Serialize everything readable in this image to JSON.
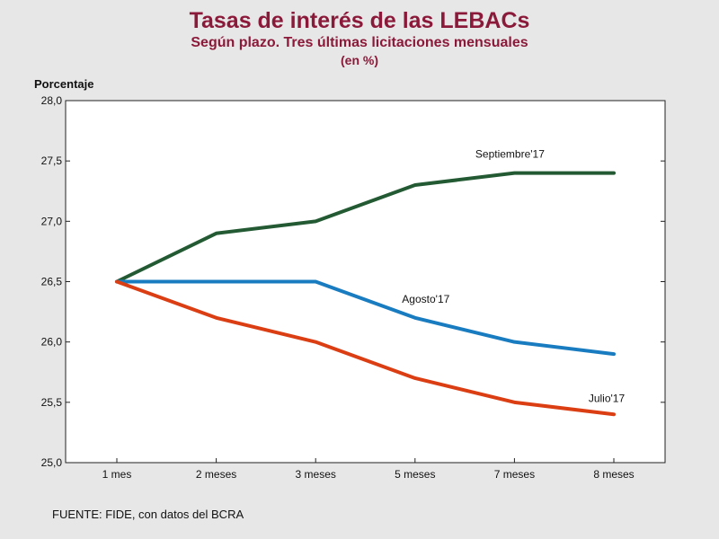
{
  "chart_data": {
    "type": "line",
    "title": "Tasas de interés de las LEBACs",
    "subtitle": "Según plazo. Tres últimas licitaciones mensuales",
    "unit": "(en %)",
    "ylabel": "Porcentaje",
    "xlabel": "",
    "categories": [
      "1 mes",
      "2 meses",
      "3 meses",
      "5 meses",
      "7 meses",
      "8 meses"
    ],
    "ylim": [
      25.0,
      28.0
    ],
    "yticks": [
      "25,0",
      "25,5",
      "26,0",
      "26,5",
      "27,0",
      "27,5",
      "28,0"
    ],
    "ytick_values": [
      25.0,
      25.5,
      26.0,
      26.5,
      27.0,
      27.5,
      28.0
    ],
    "grid": false,
    "series": [
      {
        "name": "Septiembre'17",
        "color": "#235a33",
        "values": [
          26.5,
          26.9,
          27.0,
          27.3,
          27.4,
          27.4
        ]
      },
      {
        "name": "Agosto'17",
        "color": "#1a7cc0",
        "values": [
          26.5,
          26.5,
          26.5,
          26.2,
          26.0,
          25.9
        ]
      },
      {
        "name": "Julio'17",
        "color": "#dc3e14",
        "values": [
          26.5,
          26.2,
          26.0,
          25.7,
          25.5,
          25.4
        ]
      }
    ],
    "source": "FUENTE: FIDE, con datos del BCRA"
  }
}
